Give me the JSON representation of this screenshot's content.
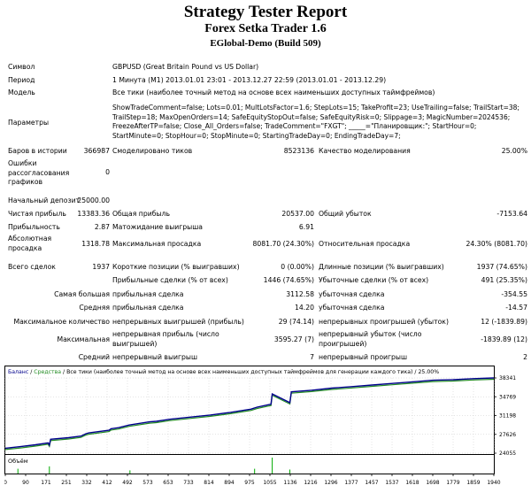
{
  "header": {
    "title": "Strategy Tester Report",
    "subtitle": "Forex Setka Trader 1.6",
    "server": "EGlobal-Demo (Build 509)"
  },
  "info": {
    "symbol_label": "Символ",
    "symbol_value": "GBPUSD (Great Britain Pound vs US Dollar)",
    "period_label": "Период",
    "period_value": "1 Минута (M1) 2013.01.01 23:01 - 2013.12.27 22:59 (2013.01.01 - 2013.12.29)",
    "model_label": "Модель",
    "model_value": "Все тики (наиболее точный метод на основе всех наименьших доступных таймфреймов)",
    "params_label": "Параметры",
    "params_lines": [
      "ShowTradeComment=false; Lots=0.01; MultLotsFactor=1.6; StepLots=15; TakeProfit=23; UseTrailing=false; TrailStart=38;",
      "TrailStep=18; MaxOpenOrders=14; SafeEquityStopOut=false; SafeEquityRisk=0; Slippage=3; MagicNumber=2024536;",
      "FreezeAfterTP=false; Close_All_Orders=false; TradeComment=\"FXGT\"; _____=\"Планировщик:\"; StartHour=0;",
      "StartMinute=0; StopHour=0; StopMinute=0; StartingTradeDay=0; EndingTradeDay=7;"
    ]
  },
  "stats": {
    "bars_label": "Баров в истории",
    "bars_value": "366987",
    "ticks_label": "Смоделировано тиков",
    "ticks_value": "8523136",
    "quality_label": "Качество моделирования",
    "quality_value": "25.00%",
    "errors_label": "Ошибки рассогласования графиков",
    "errors_value": "0",
    "deposit_label": "Начальный депозит",
    "deposit_value": "25000.00",
    "net_label": "Чистая прибыль",
    "net_value": "13383.36",
    "gross_profit_label": "Общая прибыль",
    "gross_profit_value": "20537.00",
    "gross_loss_label": "Общий убыток",
    "gross_loss_value": "-7153.64",
    "pf_label": "Прибыльность",
    "pf_value": "2.87",
    "payoff_label": "Матожидание выигрыша",
    "payoff_value": "6.91",
    "abs_dd_label": "Абсолютная просадка",
    "abs_dd_value": "1318.78",
    "max_dd_label": "Максимальная просадка",
    "max_dd_value": "8081.70 (24.30%)",
    "rel_dd_label": "Относительная просадка",
    "rel_dd_value": "24.30% (8081.70)",
    "total_label": "Всего сделок",
    "total_value": "1937",
    "short_label": "Короткие позиции (% выигравших)",
    "short_value": "0 (0.00%)",
    "long_label": "Длинные позиции (% выигравших)",
    "long_value": "1937 (74.65%)",
    "profit_trades_label": "Прибыльные сделки (% от всех)",
    "profit_trades_value": "1446 (74.65%)",
    "loss_trades_label": "Убыточные сделки (% от всех)",
    "loss_trades_value": "491 (25.35%)",
    "largest_label": "Самая большая",
    "largest_profit_label": "прибыльная сделка",
    "largest_profit_value": "3112.58",
    "largest_loss_label": "убыточная сделка",
    "largest_loss_value": "-354.55",
    "average_label": "Средняя",
    "average_profit_label": "прибыльная сделка",
    "average_profit_value": "14.20",
    "average_loss_label": "убыточная сделка",
    "average_loss_value": "-14.57",
    "maxcount_label": "Максимальное количество",
    "maxcount_wins_label": "непрерывных выигрышей (прибыль)",
    "maxcount_wins_value": "29 (74.14)",
    "maxcount_losses_label": "непрерывных проигрышей (убыток)",
    "maxcount_losses_value": "12 (-1839.89)",
    "maximal_label": "Максимальная",
    "maximal_profit_label": "непрерывная прибыль (число выигрышей)",
    "maximal_profit_value": "3595.27 (7)",
    "maximal_loss_label": "непрерывный убыток (число проигрышей)",
    "maximal_loss_value": "-1839.89 (12)",
    "avgcons_label": "Средний",
    "avgcons_wins_label": "непрерывный выигрыш",
    "avgcons_wins_value": "7",
    "avgcons_losses_label": "непрерывный проигрыш",
    "avgcons_losses_value": "2"
  },
  "chart_data": {
    "type": "line",
    "legend": {
      "balance": "Баланс",
      "separator1": " / ",
      "equity": "Средства",
      "separator2": " / ",
      "model": "Все тики (наиболее точный метод на основе всех наименьших доступных таймфреймов для генерации каждого тика)",
      "separator3": " / ",
      "quality": "25.00%"
    },
    "volume_label": "Объём",
    "y_ticks": [
      "38341",
      "34769",
      "31198",
      "27626",
      "24055"
    ],
    "y_tick_values": [
      38341,
      34769,
      31198,
      27626,
      24055
    ],
    "ylim": [
      24055,
      38341
    ],
    "x_ticks": [
      "0",
      "90",
      "171",
      "251",
      "332",
      "412",
      "492",
      "573",
      "653",
      "733",
      "814",
      "894",
      "975",
      "1055",
      "1136",
      "1216",
      "1296",
      "1377",
      "1457",
      "1537",
      "1618",
      "1698",
      "1779",
      "1859",
      "1940"
    ],
    "xlim": [
      0,
      1940
    ],
    "colors": {
      "balance": "#00008b",
      "equity": "#228b22",
      "volume": "#00aa00"
    },
    "series": [
      {
        "name": "Баланс",
        "x": [
          0,
          60,
          120,
          170,
          175,
          180,
          251,
          300,
          320,
          332,
          412,
          420,
          450,
          492,
          573,
          600,
          653,
          733,
          814,
          894,
          960,
          975,
          1000,
          1040,
          1055,
          1060,
          1130,
          1136,
          1216,
          1296,
          1377,
          1457,
          1537,
          1618,
          1698,
          1779,
          1859,
          1940
        ],
        "y": [
          25000,
          25300,
          25650,
          26000,
          25600,
          26700,
          27000,
          27300,
          27750,
          27900,
          28400,
          28700,
          28900,
          29400,
          30000,
          30100,
          30500,
          30900,
          31300,
          31800,
          32300,
          32400,
          32800,
          33200,
          33350,
          35300,
          33650,
          35700,
          36000,
          36400,
          36700,
          37000,
          37300,
          37600,
          37900,
          38000,
          38200,
          38341
        ]
      }
    ],
    "volume_spikes": [
      {
        "x": 50,
        "height": 0.3
      },
      {
        "x": 175,
        "height": 0.45
      },
      {
        "x": 495,
        "height": 0.2
      },
      {
        "x": 990,
        "height": 0.3
      },
      {
        "x": 1060,
        "height": 1.0
      },
      {
        "x": 1130,
        "height": 0.25
      }
    ]
  }
}
